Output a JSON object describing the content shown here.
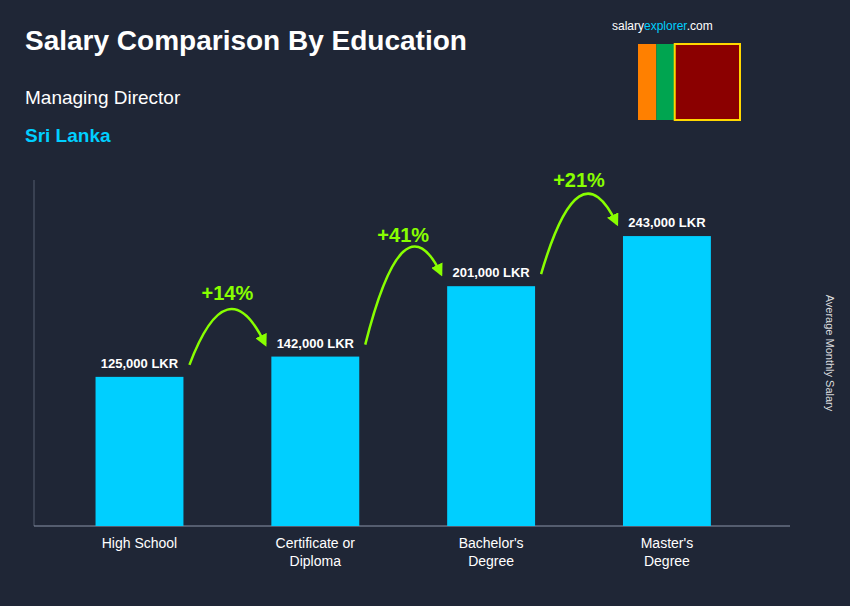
{
  "chart_data": {
    "type": "bar",
    "title": "Salary Comparison By Education",
    "subtitle": "Managing Director",
    "country": "Sri Lanka",
    "watermark": [
      "salary",
      "explorer",
      ".com"
    ],
    "ylabel": "Average Monthly Salary",
    "categories": [
      "High School",
      "Certificate or\nDiploma",
      "Bachelor's\nDegree",
      "Master's\nDegree"
    ],
    "values": [
      125000,
      142000,
      201000,
      243000
    ],
    "value_labels": [
      "125,000 LKR",
      "142,000 LKR",
      "201,000 LKR",
      "243,000 LKR"
    ],
    "annotations": [
      "+14%",
      "+41%",
      "+21%"
    ],
    "color": "#00cfff",
    "ylim": [
      0,
      290000
    ],
    "grid": false,
    "data_labels": true,
    "tick_labels": "x"
  }
}
